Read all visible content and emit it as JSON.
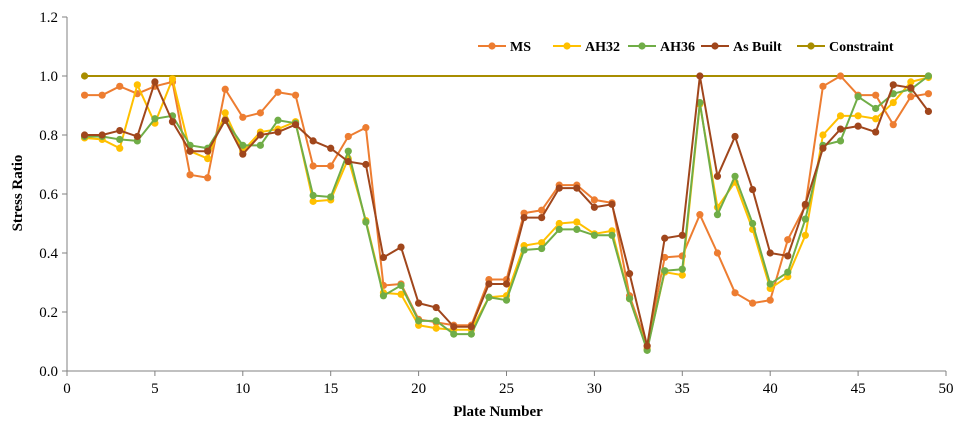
{
  "chart_data": {
    "type": "line",
    "title": "",
    "xlabel": "Plate Number",
    "ylabel": "Stress Ratio",
    "xlim": [
      0,
      50
    ],
    "ylim": [
      0,
      1.2
    ],
    "xticks": [
      "0",
      "5",
      "10",
      "15",
      "20",
      "25",
      "30",
      "35",
      "40",
      "45",
      "50"
    ],
    "yticks": [
      "0.0",
      "0.2",
      "0.4",
      "0.6",
      "0.8",
      "1.0",
      "1.2"
    ],
    "grid": false,
    "legend_position": "top-right",
    "x": [
      1,
      2,
      3,
      4,
      5,
      6,
      7,
      8,
      9,
      10,
      11,
      12,
      13,
      14,
      15,
      16,
      17,
      18,
      19,
      20,
      21,
      22,
      23,
      24,
      25,
      26,
      27,
      28,
      29,
      30,
      31,
      32,
      33,
      34,
      35,
      36,
      37,
      38,
      39,
      40,
      41,
      42,
      43,
      44,
      45,
      46,
      47,
      48,
      49
    ],
    "series": [
      {
        "name": "MS",
        "color": "#ED7D31",
        "values": [
          0.935,
          0.935,
          0.965,
          0.94,
          0.965,
          0.98,
          0.665,
          0.655,
          0.955,
          0.86,
          0.875,
          0.945,
          0.935,
          0.695,
          0.695,
          0.795,
          0.825,
          0.29,
          0.295,
          0.175,
          0.165,
          0.155,
          0.155,
          0.31,
          0.31,
          0.535,
          0.545,
          0.63,
          0.63,
          0.58,
          0.57,
          0.255,
          0.085,
          0.385,
          0.39,
          0.53,
          0.4,
          0.265,
          0.23,
          0.24,
          0.445,
          0.56,
          0.965,
          1.0,
          0.935,
          0.935,
          0.835,
          0.93,
          0.94
        ]
      },
      {
        "name": "AH32",
        "color": "#FFC000",
        "values": [
          0.79,
          0.785,
          0.755,
          0.97,
          0.84,
          0.99,
          0.745,
          0.72,
          0.875,
          0.745,
          0.81,
          0.82,
          0.845,
          0.575,
          0.58,
          0.72,
          0.51,
          0.265,
          0.26,
          0.155,
          0.145,
          0.14,
          0.14,
          0.25,
          0.255,
          0.425,
          0.435,
          0.5,
          0.505,
          0.465,
          0.475,
          0.245,
          0.075,
          0.335,
          0.325,
          0.905,
          0.555,
          0.64,
          0.48,
          0.28,
          0.32,
          0.46,
          0.8,
          0.865,
          0.865,
          0.855,
          0.91,
          0.98,
          0.995
        ]
      },
      {
        "name": "AH36",
        "color": "#70AD47",
        "values": [
          0.795,
          0.795,
          0.785,
          0.78,
          0.855,
          0.865,
          0.765,
          0.755,
          0.85,
          0.765,
          0.765,
          0.85,
          0.84,
          0.595,
          0.59,
          0.745,
          0.505,
          0.255,
          0.29,
          0.17,
          0.17,
          0.125,
          0.125,
          0.25,
          0.24,
          0.41,
          0.415,
          0.48,
          0.48,
          0.46,
          0.46,
          0.245,
          0.07,
          0.34,
          0.345,
          0.91,
          0.53,
          0.66,
          0.5,
          0.295,
          0.335,
          0.515,
          0.765,
          0.78,
          0.93,
          0.89,
          0.94,
          0.955,
          1.0
        ]
      },
      {
        "name": "As Built",
        "color": "#A0461C",
        "values": [
          0.8,
          0.8,
          0.815,
          0.795,
          0.98,
          0.845,
          0.745,
          0.745,
          0.85,
          0.735,
          0.8,
          0.81,
          0.835,
          0.78,
          0.755,
          0.71,
          0.7,
          0.385,
          0.42,
          0.23,
          0.215,
          0.15,
          0.15,
          0.295,
          0.295,
          0.52,
          0.52,
          0.62,
          0.62,
          0.555,
          0.565,
          0.33,
          0.085,
          0.45,
          0.46,
          1.0,
          0.66,
          0.795,
          0.615,
          0.4,
          0.39,
          0.565,
          0.755,
          0.82,
          0.83,
          0.81,
          0.97,
          0.96,
          0.88
        ]
      },
      {
        "name": "Constraint",
        "color": "#A88D00",
        "line_only": true,
        "values": [
          1.0,
          1.0,
          1.0,
          1.0,
          1.0,
          1.0,
          1.0,
          1.0,
          1.0,
          1.0,
          1.0,
          1.0,
          1.0,
          1.0,
          1.0,
          1.0,
          1.0,
          1.0,
          1.0,
          1.0,
          1.0,
          1.0,
          1.0,
          1.0,
          1.0,
          1.0,
          1.0,
          1.0,
          1.0,
          1.0,
          1.0,
          1.0,
          1.0,
          1.0,
          1.0,
          1.0,
          1.0,
          1.0,
          1.0,
          1.0,
          1.0,
          1.0,
          1.0,
          1.0,
          1.0,
          1.0,
          1.0,
          1.0,
          1.0
        ]
      }
    ]
  }
}
